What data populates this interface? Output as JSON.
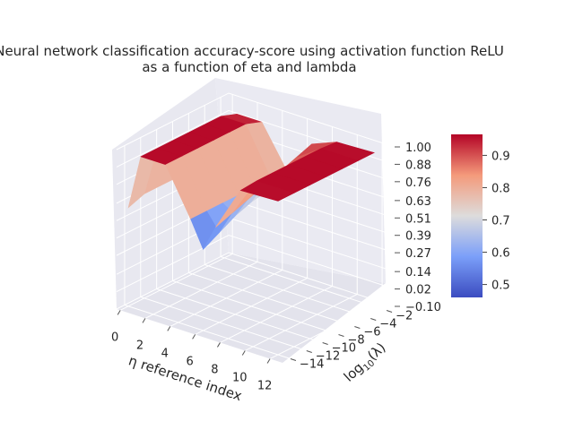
{
  "chart_data": {
    "type": "surface3d",
    "title_line1": "Neural network classification accuracy-score using activation function ReLU",
    "title_line2": "as a function of eta and lambda",
    "xlabel": "η reference index",
    "ylabel": "log",
    "ylabel_sub": "10",
    "ylabel_arg": "(λ)",
    "x_ticks": [
      "0",
      "2",
      "4",
      "6",
      "8",
      "10",
      "12"
    ],
    "y_ticks": [
      "−14",
      "−12",
      "−10",
      "−8",
      "−6",
      "−4",
      "−2"
    ],
    "z_ticks": [
      "−0.10",
      "0.02",
      "0.14",
      "0.27",
      "0.39",
      "0.51",
      "0.63",
      "0.76",
      "0.88",
      "1.00"
    ],
    "zlim": [
      -0.1,
      1.0
    ],
    "colorbar_ticks": [
      "0.5",
      "0.6",
      "0.7",
      "0.8",
      "0.9"
    ],
    "colorbar_range": [
      0.46,
      0.965
    ],
    "colormap": "coolwarm",
    "grid": true,
    "surface": {
      "eta_index": [
        0,
        1,
        3,
        5,
        6,
        7,
        9,
        12
      ],
      "log10_lambda": [
        -14,
        -12,
        -10,
        -8,
        -6,
        -4,
        -2
      ],
      "accuracy_rows": [
        [
          0.58,
          0.62,
          0.62,
          0.62,
          0.62,
          0.62,
          0.58
        ],
        [
          0.96,
          0.96,
          0.96,
          0.96,
          0.96,
          0.96,
          0.92
        ],
        [
          0.96,
          0.96,
          0.96,
          0.96,
          0.96,
          0.96,
          0.92
        ],
        [
          0.64,
          0.64,
          0.64,
          0.64,
          0.64,
          0.64,
          0.64
        ],
        [
          0.46,
          0.52,
          0.58,
          0.62,
          0.64,
          0.64,
          0.64
        ],
        [
          0.64,
          0.68,
          0.72,
          0.76,
          0.8,
          0.84,
          0.88
        ],
        [
          0.95,
          0.96,
          0.96,
          0.96,
          0.96,
          0.96,
          0.95
        ],
        [
          0.96,
          0.96,
          0.96,
          0.96,
          0.96,
          0.96,
          0.96
        ]
      ]
    }
  }
}
